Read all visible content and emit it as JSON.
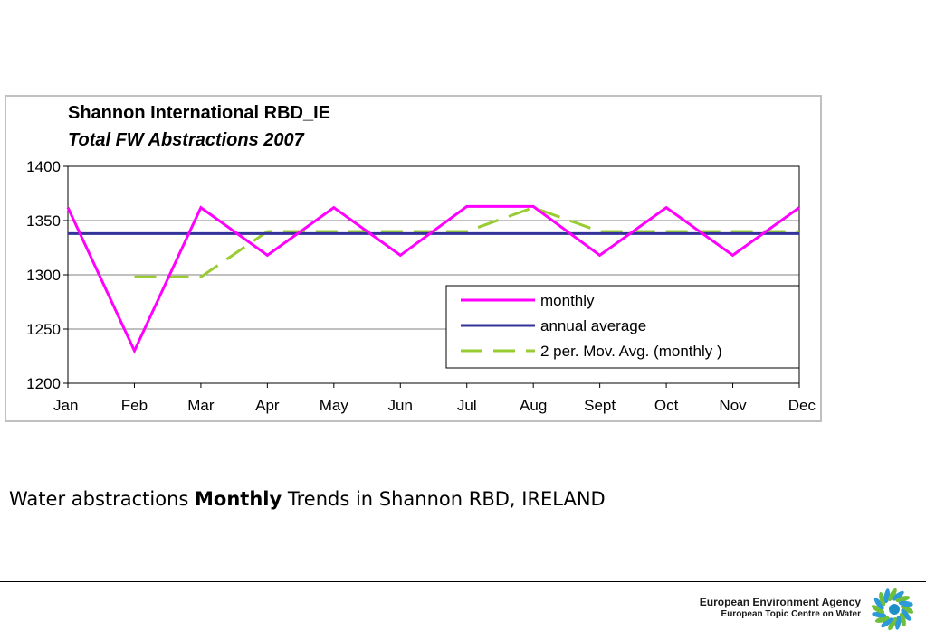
{
  "chart_data": {
    "type": "line",
    "title": "Shannon International RBD_IE",
    "subtitle": "Total FW Abstractions 2007",
    "xlabel": "",
    "ylabel": "",
    "categories": [
      "Jan",
      "Feb",
      "Mar",
      "Apr",
      "May",
      "Jun",
      "Jul",
      "Aug",
      "Sept",
      "Oct",
      "Nov",
      "Dec"
    ],
    "ylim": [
      1200,
      1400
    ],
    "yticks": [
      "1200",
      "1250",
      "1300",
      "1350",
      "1400"
    ],
    "grid": true,
    "legend_position": "bottom-right",
    "series": [
      {
        "name": "monthly",
        "color": "#ff00ff",
        "style": "solid",
        "values": [
          1362,
          1230,
          1362,
          1318,
          1362,
          1318,
          1363,
          1363,
          1318,
          1362,
          1318,
          1362
        ]
      },
      {
        "name": "annual average",
        "color": "#333399",
        "style": "solid",
        "values": [
          1338,
          1338,
          1338,
          1338,
          1338,
          1338,
          1338,
          1338,
          1338,
          1338,
          1338,
          1338
        ]
      },
      {
        "name": "2 per. Mov. Avg. (monthly )",
        "color": "#99cc33",
        "style": "dashed",
        "values": [
          null,
          1298,
          1298,
          1340,
          1340,
          1340,
          1340,
          1362,
          1340,
          1340,
          1340,
          1340
        ]
      }
    ]
  },
  "caption": {
    "prefix": "Water abstractions ",
    "bold": "Monthly",
    "suffix": " Trends in Shannon RBD, IRELAND"
  },
  "footer": {
    "agency_name": "European Environment Agency",
    "agency_subtitle": "European Topic Centre on Water",
    "logo_color": "#1e90c8"
  }
}
